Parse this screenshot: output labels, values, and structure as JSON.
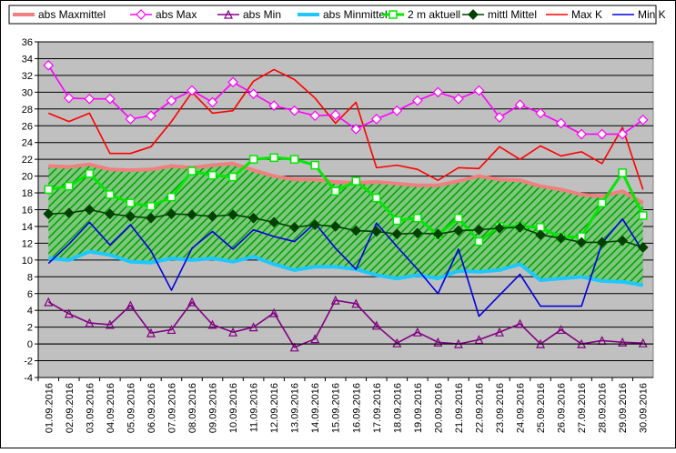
{
  "chart_data": {
    "type": "line",
    "title": "",
    "xlabel": "",
    "ylabel": "",
    "ylim": [
      -4,
      36
    ],
    "ytick_step": 2,
    "grid": true,
    "legend_position": "top",
    "categories": [
      "01.09.2016",
      "02.09.2016",
      "03.09.2016",
      "04.09.2016",
      "05.09.2016",
      "06.09.2016",
      "07.09.2016",
      "08.09.2016",
      "09.09.2016",
      "10.09.2016",
      "11.09.2016",
      "12.09.2016",
      "13.09.2016",
      "14.09.2016",
      "15.09.2016",
      "16.09.2016",
      "17.09.2016",
      "18.09.2016",
      "19.09.2016",
      "20.09.2016",
      "21.09.2016",
      "22.09.2016",
      "23.09.2016",
      "24.09.2016",
      "25.09.2016",
      "26.09.2016",
      "27.09.2016",
      "28.09.2016",
      "29.09.2016",
      "30.09.2016"
    ],
    "band": {
      "upper_series": "abs Maxmittel",
      "lower_series": "abs Minmittel",
      "fill_color": "#7fc77f",
      "hatch_color": "#00a000"
    },
    "series": [
      {
        "name": "abs Maxmittel",
        "color": "#f08080",
        "marker": "none",
        "width": 4,
        "values": [
          21.2,
          21.1,
          21.4,
          20.8,
          20.7,
          20.8,
          21.2,
          21.0,
          21.3,
          21.5,
          20.7,
          20.0,
          19.6,
          19.6,
          19.3,
          19.2,
          19.3,
          19.1,
          18.9,
          18.9,
          19.4,
          20.0,
          19.6,
          19.5,
          18.8,
          18.4,
          17.8,
          17.6,
          18.2,
          16.8
        ]
      },
      {
        "name": "abs Max",
        "color": "#ff00ff",
        "marker": "diamond-open",
        "values": [
          33.2,
          29.3,
          29.2,
          29.2,
          26.8,
          27.2,
          29.0,
          30.2,
          28.8,
          31.2,
          29.8,
          28.4,
          27.8,
          27.2,
          27.3,
          25.6,
          26.8,
          27.8,
          29.0,
          30.0,
          29.2,
          30.2,
          27.0,
          28.5,
          27.5,
          26.3,
          25.0,
          25.0,
          25.0,
          26.7
        ]
      },
      {
        "name": "abs Min",
        "color": "#800080",
        "marker": "triangle-open",
        "values": [
          5.0,
          3.6,
          2.5,
          2.3,
          4.6,
          1.3,
          1.7,
          5.0,
          2.3,
          1.4,
          2.0,
          3.7,
          -0.4,
          0.6,
          5.2,
          4.8,
          2.2,
          0.1,
          1.4,
          0.2,
          0.0,
          0.5,
          1.4,
          2.4,
          0.0,
          1.7,
          0.0,
          0.4,
          0.2,
          0.1
        ]
      },
      {
        "name": "abs Minmittel",
        "color": "#1ec8ff",
        "marker": "none",
        "width": 4,
        "values": [
          10.2,
          10.0,
          11.0,
          10.6,
          9.8,
          9.7,
          10.2,
          10.0,
          10.2,
          9.8,
          10.4,
          9.5,
          8.8,
          9.2,
          9.2,
          8.9,
          8.2,
          7.8,
          8.2,
          7.8,
          8.7,
          8.6,
          8.8,
          9.5,
          7.6,
          7.8,
          8.0,
          7.5,
          7.4,
          7.0
        ]
      },
      {
        "name": "2 m aktuell",
        "color": "#00e600",
        "marker": "square-open",
        "width": 3,
        "values": [
          18.4,
          18.8,
          20.3,
          17.8,
          16.8,
          16.4,
          17.5,
          20.6,
          20.1,
          19.9,
          22.0,
          22.2,
          22.0,
          21.3,
          18.2,
          19.4,
          17.4,
          14.7,
          15.0,
          13.0,
          15.0,
          12.2,
          14.0,
          14.0,
          13.9,
          12.7,
          12.8,
          16.8,
          20.4,
          15.3
        ]
      },
      {
        "name": "mittl Mittel",
        "color": "#004000",
        "marker": "diamond-filled",
        "values": [
          15.5,
          15.6,
          16.0,
          15.5,
          15.2,
          15.0,
          15.5,
          15.4,
          15.2,
          15.4,
          15.0,
          14.5,
          13.9,
          14.2,
          14.0,
          13.5,
          13.4,
          13.1,
          13.2,
          13.1,
          13.5,
          13.6,
          13.8,
          13.9,
          13.0,
          12.6,
          12.1,
          12.1,
          12.3,
          11.5
        ]
      },
      {
        "name": "Max K",
        "color": "#ff0000",
        "marker": "none",
        "values": [
          27.5,
          26.5,
          27.5,
          22.7,
          22.7,
          23.5,
          26.5,
          30.0,
          27.5,
          27.8,
          31.3,
          32.7,
          31.5,
          29.3,
          26.3,
          28.8,
          21.0,
          21.3,
          20.8,
          19.5,
          21.0,
          20.9,
          23.5,
          22.0,
          23.6,
          22.4,
          22.9,
          21.5,
          25.8,
          18.4
        ]
      },
      {
        "name": "Min K",
        "color": "#0000e0",
        "marker": "none",
        "values": [
          9.6,
          11.9,
          14.5,
          11.8,
          14.2,
          11.1,
          6.4,
          11.4,
          13.4,
          11.3,
          13.6,
          12.8,
          12.2,
          14.4,
          11.4,
          8.9,
          14.4,
          11.6,
          8.9,
          6.0,
          11.3,
          3.3,
          5.8,
          8.3,
          4.5,
          4.5,
          4.5,
          12.0,
          14.9,
          11.0
        ]
      }
    ]
  }
}
